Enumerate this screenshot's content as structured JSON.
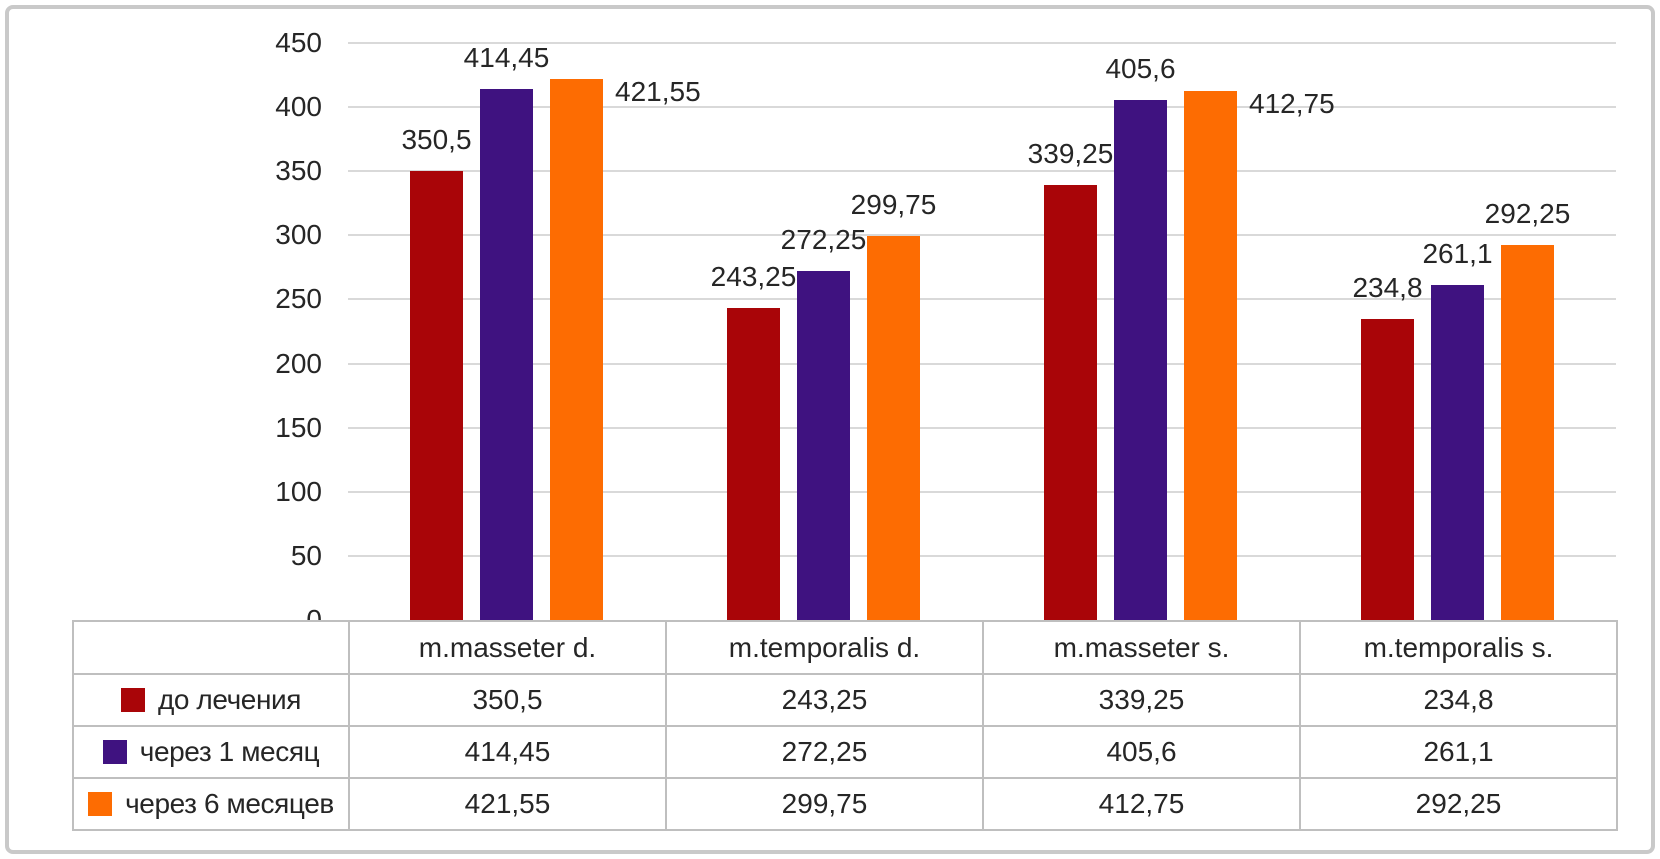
{
  "chart_data": {
    "type": "bar",
    "title": "",
    "categories": [
      "m.masseter d.",
      "m.temporalis d.",
      "m.masseter s.",
      "m.temporalis s."
    ],
    "series": [
      {
        "name": "до лечения",
        "color": "#A90508",
        "values": [
          350.5,
          243.25,
          339.25,
          234.8
        ],
        "display_labels": [
          "350,5",
          "243,25",
          "339,25",
          "234,8"
        ]
      },
      {
        "name": "через 1 месяц",
        "color": "#3F1280",
        "values": [
          414.45,
          272.25,
          405.6,
          261.1
        ],
        "display_labels": [
          "414,45",
          "272,25",
          "405,6",
          "261,1"
        ]
      },
      {
        "name": "через 6 месяцев",
        "color": "#FD6C02",
        "values": [
          421.55,
          299.75,
          412.75,
          292.25
        ],
        "display_labels": [
          "421,55",
          "299,75",
          "412,75",
          "292,25"
        ]
      }
    ],
    "ylim": [
      0,
      450
    ],
    "ytick_step": 50,
    "ytick_labels": [
      "0",
      "50",
      "100",
      "150",
      "200",
      "250",
      "300",
      "350",
      "400",
      "450"
    ],
    "grid": true,
    "decimal_separator": ",",
    "legend_position": "table-left-column",
    "has_data_table": true,
    "label_right_points": [
      {
        "category_index": 0,
        "series_index": 2
      },
      {
        "category_index": 2,
        "series_index": 2
      }
    ]
  },
  "styles": {
    "gridline_color": "#D9D9D9",
    "table_border_color": "#BFBFBF",
    "text_color": "#262626",
    "frame_color": "#C9C9C9",
    "background": "#FFFFFF"
  }
}
